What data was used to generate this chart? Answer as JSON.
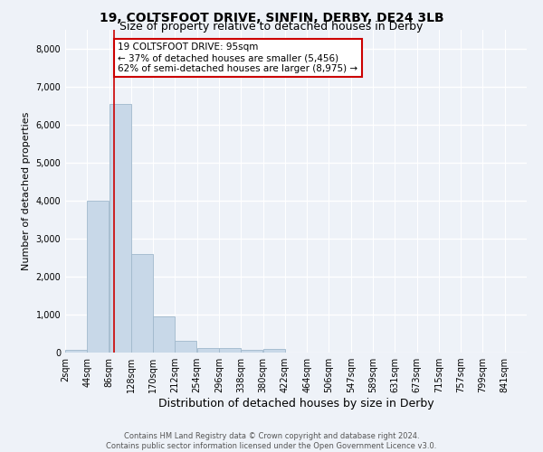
{
  "title1": "19, COLTSFOOT DRIVE, SINFIN, DERBY, DE24 3LB",
  "title2": "Size of property relative to detached houses in Derby",
  "xlabel": "Distribution of detached houses by size in Derby",
  "ylabel": "Number of detached properties",
  "bar_values": [
    75,
    4000,
    6550,
    2600,
    960,
    310,
    120,
    110,
    80,
    100,
    0,
    0,
    0,
    0,
    0,
    0,
    0,
    0,
    0,
    0
  ],
  "bin_labels": [
    "2sqm",
    "44sqm",
    "86sqm",
    "128sqm",
    "170sqm",
    "212sqm",
    "254sqm",
    "296sqm",
    "338sqm",
    "380sqm",
    "422sqm",
    "464sqm",
    "506sqm",
    "547sqm",
    "589sqm",
    "631sqm",
    "673sqm",
    "715sqm",
    "757sqm",
    "799sqm",
    "841sqm"
  ],
  "bar_color": "#c8d8e8",
  "bar_edge_color": "#a0b8cc",
  "background_color": "#eef2f8",
  "grid_color": "#ffffff",
  "property_line_x": 95,
  "annotation_text": "19 COLTSFOOT DRIVE: 95sqm\n← 37% of detached houses are smaller (5,456)\n62% of semi-detached houses are larger (8,975) →",
  "annotation_box_color": "#ffffff",
  "annotation_box_edge": "#cc0000",
  "red_line_color": "#cc0000",
  "ylim": [
    0,
    8500
  ],
  "yticks": [
    0,
    1000,
    2000,
    3000,
    4000,
    5000,
    6000,
    7000,
    8000
  ],
  "footer": "Contains HM Land Registry data © Crown copyright and database right 2024.\nContains public sector information licensed under the Open Government Licence v3.0.",
  "title1_fontsize": 10,
  "title2_fontsize": 9,
  "ylabel_fontsize": 8,
  "xlabel_fontsize": 9,
  "tick_fontsize": 7,
  "annotation_fontsize": 7.5,
  "footer_fontsize": 6
}
